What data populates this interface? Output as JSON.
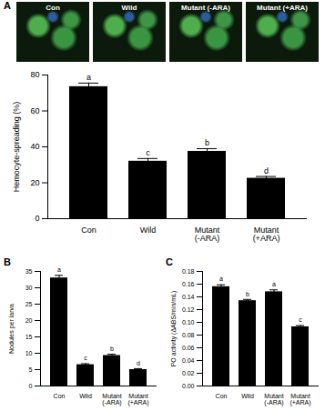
{
  "micrographs": {
    "panel": "A",
    "labels": [
      "Con",
      "Wild",
      "Mutant (-ARA)",
      "Mutant (+ARA)"
    ]
  },
  "chart_data": [
    {
      "type": "bar",
      "categories": [
        "Con",
        "Wild",
        "Mutant (-ARA)",
        "Mutant (+ARA)"
      ],
      "values": [
        73.5,
        32,
        37.5,
        22.5
      ],
      "errors": [
        2,
        1.5,
        1.5,
        1
      ],
      "significance": [
        "a",
        "c",
        "b",
        "d"
      ],
      "color": "#000000",
      "ylabel": "Hemocyte-spreading (%)",
      "ylim": [
        0,
        80
      ],
      "yticks": [
        0,
        20,
        40,
        60,
        80
      ]
    },
    {
      "type": "bar",
      "title": "B",
      "categories": [
        "Con",
        "Wild",
        "Mutant (-ARA)",
        "Mutant (+ARA)"
      ],
      "values": [
        33,
        6.5,
        9.3,
        5
      ],
      "errors": [
        0.8,
        0.3,
        0.4,
        0.3
      ],
      "significance": [
        "a",
        "c",
        "b",
        "d"
      ],
      "color": "#000000",
      "ylabel": "Nodules per larva",
      "ylim": [
        0,
        35
      ],
      "yticks": [
        0,
        5,
        10,
        15,
        20,
        25,
        30,
        35
      ]
    },
    {
      "type": "bar",
      "title": "C",
      "categories": [
        "Con",
        "Wild",
        "Mutant (-ARA)",
        "Mutant (+ARA)"
      ],
      "values": [
        0.156,
        0.134,
        0.148,
        0.093
      ],
      "errors": [
        0.003,
        0.002,
        0.003,
        0.002
      ],
      "significance": [
        "a",
        "b",
        "a",
        "c"
      ],
      "color": "#000000",
      "ylabel": "PO activity (ΔABS/min/mL)",
      "ylim": [
        0,
        0.18
      ],
      "yticks": [
        {
          "value": 0,
          "label": "0.00"
        },
        {
          "value": 0.02,
          "label": "0.02"
        },
        {
          "value": 0.04,
          "label": "0.04"
        },
        {
          "value": 0.06,
          "label": "0.06"
        },
        {
          "value": 0.08,
          "label": "0.08"
        },
        {
          "value": 0.1,
          "label": "0.10"
        },
        {
          "value": 0.12,
          "label": "0.12"
        },
        {
          "value": 0.14,
          "label": "0.14"
        },
        {
          "value": 0.16,
          "label": "0.16"
        },
        {
          "value": 0.18,
          "label": "0.18"
        }
      ]
    }
  ]
}
